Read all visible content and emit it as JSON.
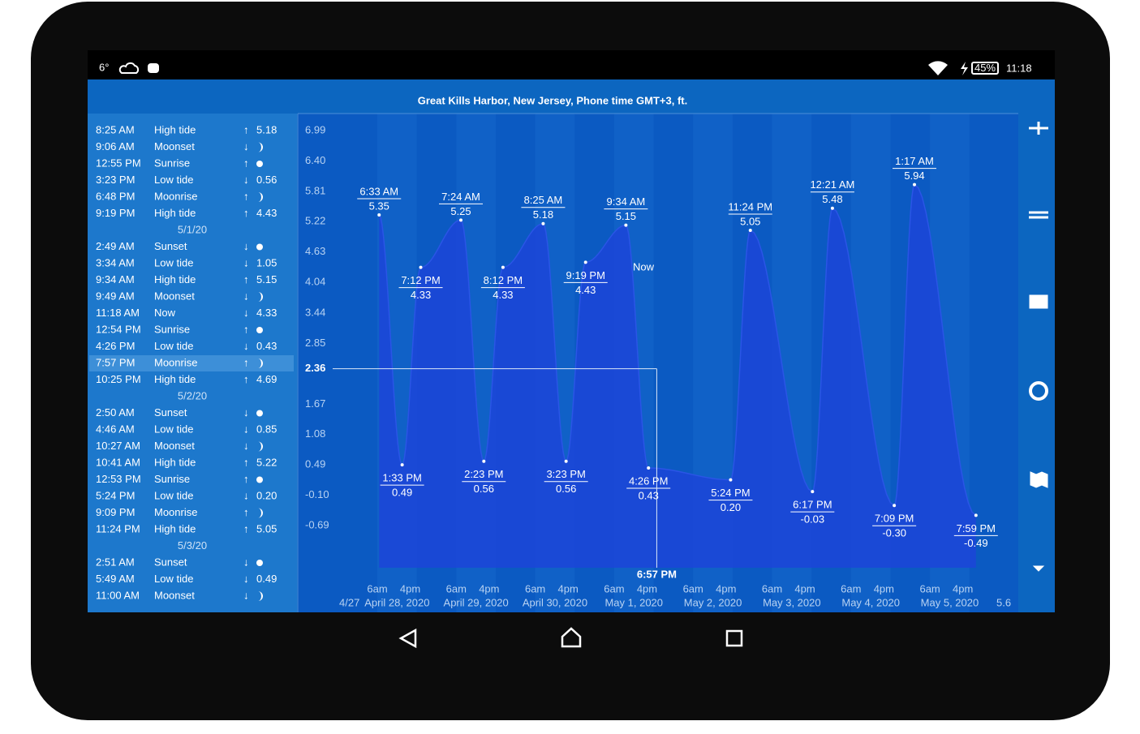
{
  "status_bar": {
    "temperature": "6°",
    "battery": "45%",
    "time": "11:18"
  },
  "title": "Great Kills Harbor, New Jersey, Phone time GMT+3, ft.",
  "events": [
    {
      "time": "8:25 AM",
      "event": "High tide",
      "arrow": "↑",
      "value": "5.18"
    },
    {
      "time": "9:06 AM",
      "event": "Moonset",
      "arrow": "↓",
      "icon": "moon"
    },
    {
      "time": "12:55 PM",
      "event": "Sunrise",
      "arrow": "↑",
      "icon": "sun"
    },
    {
      "time": "3:23 PM",
      "event": "Low tide",
      "arrow": "↓",
      "value": "0.56"
    },
    {
      "time": "6:48 PM",
      "event": "Moonrise",
      "arrow": "↑",
      "icon": "moon"
    },
    {
      "time": "9:19 PM",
      "event": "High tide",
      "arrow": "↑",
      "value": "4.43"
    },
    {
      "date": "5/1/20"
    },
    {
      "time": "2:49 AM",
      "event": "Sunset",
      "arrow": "↓",
      "icon": "sun"
    },
    {
      "time": "3:34 AM",
      "event": "Low tide",
      "arrow": "↓",
      "value": "1.05"
    },
    {
      "time": "9:34 AM",
      "event": "High tide",
      "arrow": "↑",
      "value": "5.15"
    },
    {
      "time": "9:49 AM",
      "event": "Moonset",
      "arrow": "↓",
      "icon": "moon"
    },
    {
      "time": "11:18 AM",
      "event": "Now",
      "arrow": "↓",
      "value": "4.33"
    },
    {
      "time": "12:54 PM",
      "event": "Sunrise",
      "arrow": "↑",
      "icon": "sun"
    },
    {
      "time": "4:26 PM",
      "event": "Low tide",
      "arrow": "↓",
      "value": "0.43"
    },
    {
      "time": "7:57 PM",
      "event": "Moonrise",
      "arrow": "↑",
      "icon": "moon",
      "selected": true
    },
    {
      "time": "10:25 PM",
      "event": "High tide",
      "arrow": "↑",
      "value": "4.69"
    },
    {
      "date": "5/2/20"
    },
    {
      "time": "2:50 AM",
      "event": "Sunset",
      "arrow": "↓",
      "icon": "sun"
    },
    {
      "time": "4:46 AM",
      "event": "Low tide",
      "arrow": "↓",
      "value": "0.85"
    },
    {
      "time": "10:27 AM",
      "event": "Moonset",
      "arrow": "↓",
      "icon": "moon"
    },
    {
      "time": "10:41 AM",
      "event": "High tide",
      "arrow": "↑",
      "value": "5.22"
    },
    {
      "time": "12:53 PM",
      "event": "Sunrise",
      "arrow": "↑",
      "icon": "sun"
    },
    {
      "time": "5:24 PM",
      "event": "Low tide",
      "arrow": "↓",
      "value": "0.20"
    },
    {
      "time": "9:09 PM",
      "event": "Moonrise",
      "arrow": "↑",
      "icon": "moon"
    },
    {
      "time": "11:24 PM",
      "event": "High tide",
      "arrow": "↑",
      "value": "5.05"
    },
    {
      "date": "5/3/20"
    },
    {
      "time": "2:51 AM",
      "event": "Sunset",
      "arrow": "↓",
      "icon": "sun"
    },
    {
      "time": "5:49 AM",
      "event": "Low tide",
      "arrow": "↓",
      "value": "0.49"
    },
    {
      "time": "11:00 AM",
      "event": "Moonset",
      "arrow": "↓",
      "icon": "moon"
    }
  ],
  "chart": {
    "yticks": [
      6.99,
      {
        "value": 6.4,
        "label": "6.40"
      },
      5.81,
      5.22,
      4.63,
      4.04,
      3.44,
      2.85,
      1.67,
      1.08,
      0.49,
      {
        "value": -0.1,
        "label": "-0.10"
      },
      -0.69
    ],
    "hour_labels": [
      "6am",
      "4pm"
    ],
    "edge_labels": [
      "4/27",
      "5.6"
    ],
    "days": [
      {
        "label": "April 28, 2020",
        "extremes": [
          {
            "time": "6:33 AM",
            "value": 5.35
          },
          {
            "time": "1:33 PM",
            "value": 0.49
          },
          {
            "time": "7:12 PM",
            "value": 4.33
          }
        ]
      },
      {
        "label": "April 29, 2020",
        "extremes": [
          {
            "time": "7:24 AM",
            "value": 5.25
          },
          {
            "time": "2:23 PM",
            "value": 0.56
          },
          {
            "time": "8:12 PM",
            "value": 4.33
          }
        ]
      },
      {
        "label": "April 30, 2020",
        "extremes": [
          {
            "time": "8:25 AM",
            "value": 5.18
          },
          {
            "time": "3:23 PM",
            "value": 0.56
          },
          {
            "time": "9:19 PM",
            "value": 4.43
          }
        ]
      },
      {
        "label": "May 1, 2020",
        "extremes": [
          {
            "time": "9:34 AM",
            "value": 5.15
          },
          {
            "time": "4:26 PM",
            "value": 0.43
          }
        ],
        "now_label": "Now",
        "cursor": {
          "time": "6:57 PM",
          "value": 2.36
        }
      },
      {
        "label": "May 2, 2020",
        "extremes": [
          {
            "time": "5:24 PM",
            "value": 0.2,
            "value_label": "0.20"
          },
          {
            "time": "11:24 PM",
            "value": 5.05
          }
        ]
      },
      {
        "label": "May 3, 2020",
        "extremes": [
          {
            "time": "6:17 PM",
            "value": -0.03
          }
        ]
      },
      {
        "label": "May 4, 2020",
        "extremes": [
          {
            "time": "12:21 AM",
            "value": 5.48
          },
          {
            "time": "7:09 PM",
            "value": -0.3,
            "value_label": "-0.30"
          }
        ]
      },
      {
        "label": "May 5, 2020",
        "extremes": [
          {
            "time": "1:17 AM",
            "value": 5.94
          },
          {
            "time": "7:59 PM",
            "value": -0.49
          }
        ]
      }
    ]
  }
}
